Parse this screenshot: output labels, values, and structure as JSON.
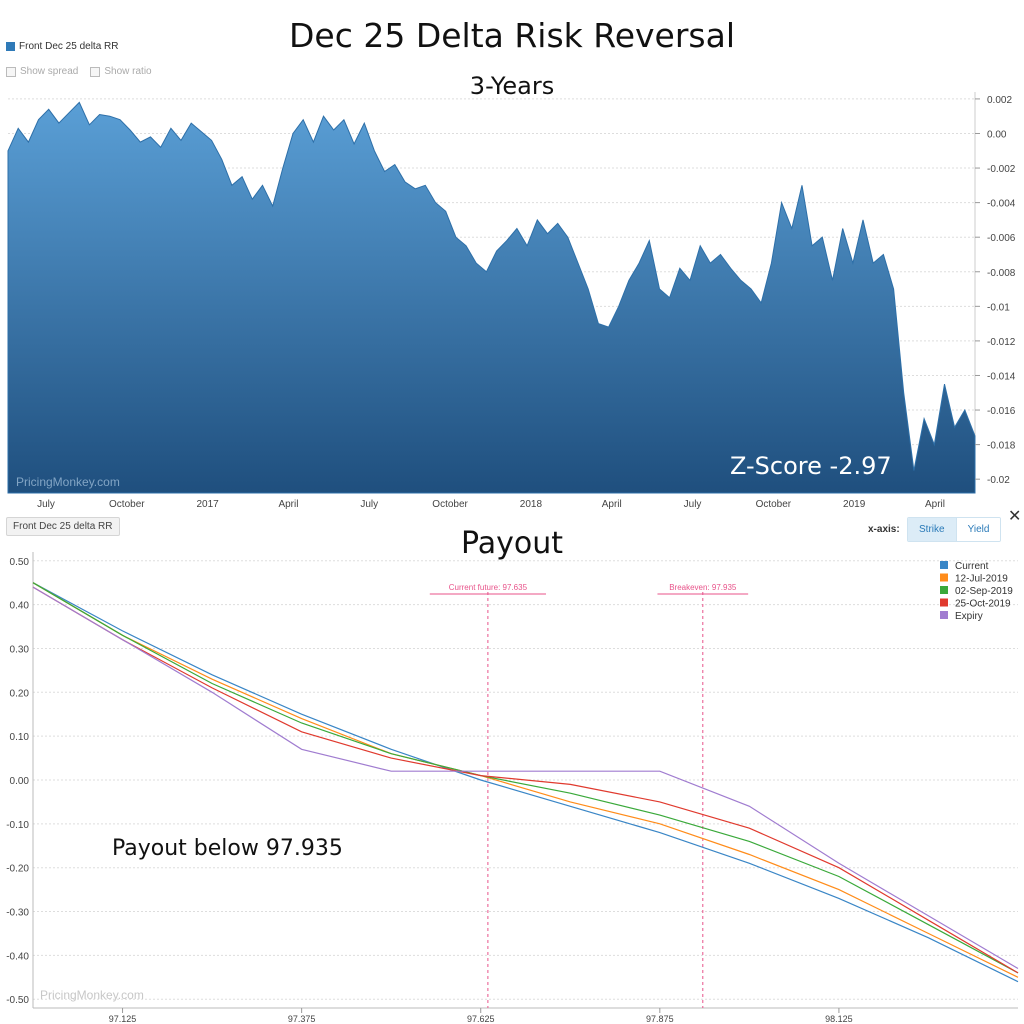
{
  "chart_data": [
    {
      "type": "area",
      "title": "Dec 25 Delta Risk Reversal",
      "subtitle": "3-Years",
      "legend": {
        "entries": [
          "Front Dec 25 delta RR"
        ],
        "placement": "top-left"
      },
      "toggles": [
        "Show spread",
        "Show ratio"
      ],
      "series_chip": "Front Dec 25 delta RR",
      "x_tick_labels": [
        "July",
        "October",
        "2017",
        "April",
        "July",
        "October",
        "2018",
        "April",
        "July",
        "October",
        "2019",
        "April"
      ],
      "y_tick_labels": [
        "0.002",
        "0.00",
        "-0.002",
        "-0.004",
        "-0.006",
        "-0.008",
        "-0.01",
        "-0.012",
        "-0.014",
        "-0.016",
        "-0.018",
        "-0.02"
      ],
      "y_ticks": [
        0.002,
        0,
        -0.002,
        -0.004,
        -0.006,
        -0.008,
        -0.01,
        -0.012,
        -0.014,
        -0.016,
        -0.018,
        -0.02
      ],
      "ylim": [
        -0.0208,
        0.0024
      ],
      "grid": true,
      "y_axis_side": "right",
      "color": "#2f7ab8",
      "watermark": "PricingMonkey.com",
      "annotation": "Z-Score -2.97",
      "series": [
        {
          "name": "Front Dec 25 delta RR",
          "values": [
            -0.001,
            0.0003,
            -0.0005,
            0.0008,
            0.0014,
            0.0006,
            0.0012,
            0.0018,
            0.0005,
            0.0011,
            0.001,
            0.0008,
            0.0002,
            -0.0005,
            -0.0002,
            -0.0008,
            0.0003,
            -0.0004,
            0.0006,
            0.0001,
            -0.0004,
            -0.0015,
            -0.003,
            -0.0025,
            -0.0038,
            -0.003,
            -0.0042,
            -0.002,
            0.0,
            0.0008,
            -0.0005,
            0.001,
            0.0002,
            0.0008,
            -0.0006,
            0.0006,
            -0.001,
            -0.0022,
            -0.0018,
            -0.0028,
            -0.0032,
            -0.003,
            -0.004,
            -0.0045,
            -0.006,
            -0.0065,
            -0.0075,
            -0.008,
            -0.0068,
            -0.0062,
            -0.0055,
            -0.0065,
            -0.005,
            -0.0058,
            -0.0052,
            -0.006,
            -0.0075,
            -0.009,
            -0.011,
            -0.0112,
            -0.01,
            -0.0085,
            -0.0075,
            -0.0062,
            -0.009,
            -0.0095,
            -0.0078,
            -0.0085,
            -0.0065,
            -0.0075,
            -0.007,
            -0.0078,
            -0.0085,
            -0.009,
            -0.0098,
            -0.0075,
            -0.004,
            -0.0055,
            -0.003,
            -0.0065,
            -0.006,
            -0.0085,
            -0.0055,
            -0.0075,
            -0.005,
            -0.0075,
            -0.007,
            -0.009,
            -0.015,
            -0.0195,
            -0.0165,
            -0.018,
            -0.0145,
            -0.017,
            -0.016,
            -0.0175
          ]
        }
      ]
    },
    {
      "type": "line",
      "title": "Payout",
      "watermark": "PricingMonkey.com",
      "annotation": "Payout below 97.935",
      "x_axis_label": "x-axis:",
      "x_axis_options": [
        "Strike",
        "Yield"
      ],
      "x_axis_selected": "Strike",
      "x": [
        97.0,
        97.125,
        97.25,
        97.375,
        97.5,
        97.625,
        97.75,
        97.875,
        98.0,
        98.125,
        98.25,
        98.375
      ],
      "xlim": [
        97.0,
        98.375
      ],
      "x_ticks": [
        97.125,
        97.375,
        97.625,
        97.875,
        98.125
      ],
      "x_tick_labels": [
        "97.125",
        "97.375",
        "97.625",
        "97.875",
        "98.125"
      ],
      "ylim": [
        -0.52,
        0.52
      ],
      "y_ticks": [
        0.5,
        0.4,
        0.3,
        0.2,
        0.1,
        0,
        -0.1,
        -0.2,
        -0.3,
        -0.4,
        -0.5
      ],
      "y_tick_labels": [
        "0.50",
        "0.40",
        "0.30",
        "0.20",
        "0.10",
        "0.00",
        "-0.10",
        "-0.20",
        "-0.30",
        "-0.40",
        "-0.50"
      ],
      "grid": true,
      "legend": {
        "placement": "top-right"
      },
      "vlines": [
        {
          "x": 97.635,
          "label": "Current future: 97.635",
          "color": "#e8538a"
        },
        {
          "x": 97.935,
          "label": "Breakeven: 97.935",
          "color": "#e8538a"
        }
      ],
      "series": [
        {
          "name": "Current",
          "color": "#3a86c6",
          "values": [
            0.45,
            0.34,
            0.24,
            0.15,
            0.07,
            0.0,
            -0.06,
            -0.12,
            -0.19,
            -0.27,
            -0.36,
            -0.46
          ]
        },
        {
          "name": "12-Jul-2019",
          "color": "#ff8c1a",
          "values": [
            0.45,
            0.33,
            0.23,
            0.14,
            0.06,
            0.01,
            -0.05,
            -0.1,
            -0.17,
            -0.25,
            -0.35,
            -0.45
          ]
        },
        {
          "name": "02-Sep-2019",
          "color": "#3aa93a",
          "values": [
            0.45,
            0.33,
            0.22,
            0.13,
            0.06,
            0.01,
            -0.03,
            -0.08,
            -0.14,
            -0.22,
            -0.33,
            -0.44
          ]
        },
        {
          "name": "25-Oct-2019",
          "color": "#e03a2e",
          "values": [
            0.44,
            0.32,
            0.21,
            0.11,
            0.05,
            0.01,
            -0.01,
            -0.05,
            -0.11,
            -0.2,
            -0.32,
            -0.44
          ]
        },
        {
          "name": "Expiry",
          "color": "#a07cd0",
          "values": [
            0.44,
            0.32,
            0.2,
            0.07,
            0.02,
            0.02,
            0.02,
            0.02,
            -0.06,
            -0.19,
            -0.31,
            -0.43
          ]
        }
      ]
    }
  ]
}
